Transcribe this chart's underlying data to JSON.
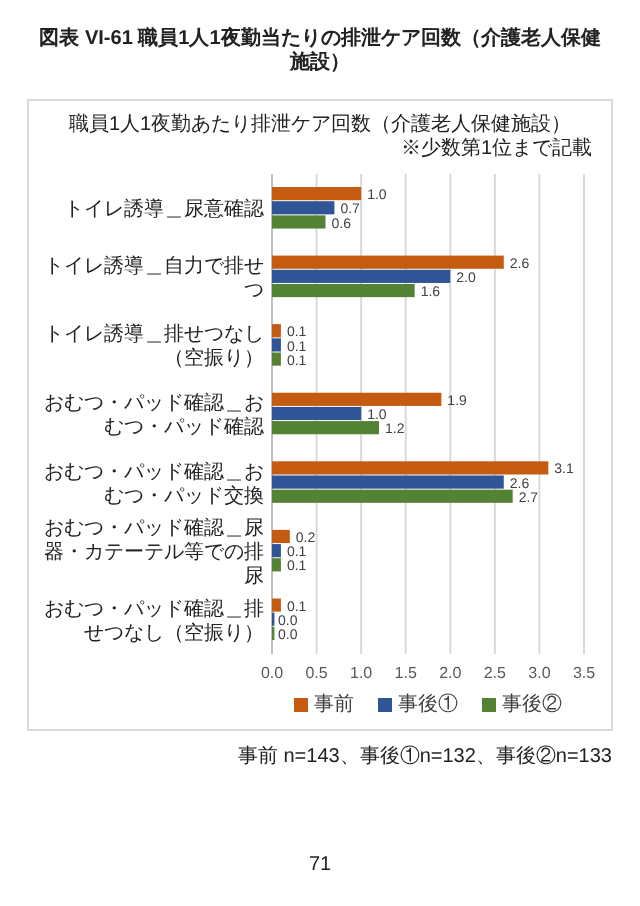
{
  "chart_data": {
    "type": "bar",
    "orientation": "horizontal",
    "title": "図表 VI-61 職員1人1夜勤当たりの排泄ケア回数（介護老人保健施設）",
    "subtitle": "職員1人1夜勤あたり排泄ケア回数（介護老人保健施設）",
    "annotations": [
      "※少数第1位まで記載",
      "事前 n=143、事後①n=132、事後②n=133",
      "71"
    ],
    "categories": [
      "トイレ誘導＿尿意確認",
      "トイレ誘導＿自力で排せつ",
      "トイレ誘導＿排せつなし（空振り）",
      "おむつ・パッド確認＿おむつ・パッド確認",
      "おむつ・パッド確認＿おむつ・パッド交換",
      "おむつ・パッド確認＿尿器・カテーテル等での排尿",
      "おむつ・パッド確認＿排せつなし（空振り）"
    ],
    "series": [
      {
        "name": "事前",
        "color": "#c55a11",
        "values": [
          1.0,
          2.6,
          0.1,
          1.9,
          3.1,
          0.2,
          0.1
        ],
        "value_labels": [
          "1.0",
          "2.6",
          "0.1",
          "1.9",
          "3.1",
          "0.2",
          "0.1"
        ]
      },
      {
        "name": "事後①",
        "color": "#2f5597",
        "values": [
          0.7,
          2.0,
          0.1,
          1.0,
          2.6,
          0.1,
          0.0
        ],
        "value_labels": [
          "0.7",
          "2.0",
          "0.1",
          "1.0",
          "2.6",
          "0.1",
          "0.0"
        ]
      },
      {
        "name": "事後②",
        "color": "#548235",
        "values": [
          0.6,
          1.6,
          0.1,
          1.2,
          2.7,
          0.1,
          0.0
        ],
        "value_labels": [
          "0.6",
          "1.6",
          "0.1",
          "1.2",
          "2.7",
          "0.1",
          "0.0"
        ]
      }
    ],
    "xlim": [
      0,
      3.5
    ],
    "xticks": [
      {
        "value": 0,
        "label": "0.0"
      },
      {
        "value": 0.5,
        "label": "0.5"
      },
      {
        "value": 1,
        "label": "1.0"
      },
      {
        "value": 1.5,
        "label": "1.5"
      },
      {
        "value": 2,
        "label": "2.0"
      },
      {
        "value": 2.5,
        "label": "2.5"
      },
      {
        "value": 3,
        "label": "3.0"
      },
      {
        "value": 3.5,
        "label": "3.5"
      }
    ],
    "grid": "x",
    "legend": "bottom"
  }
}
